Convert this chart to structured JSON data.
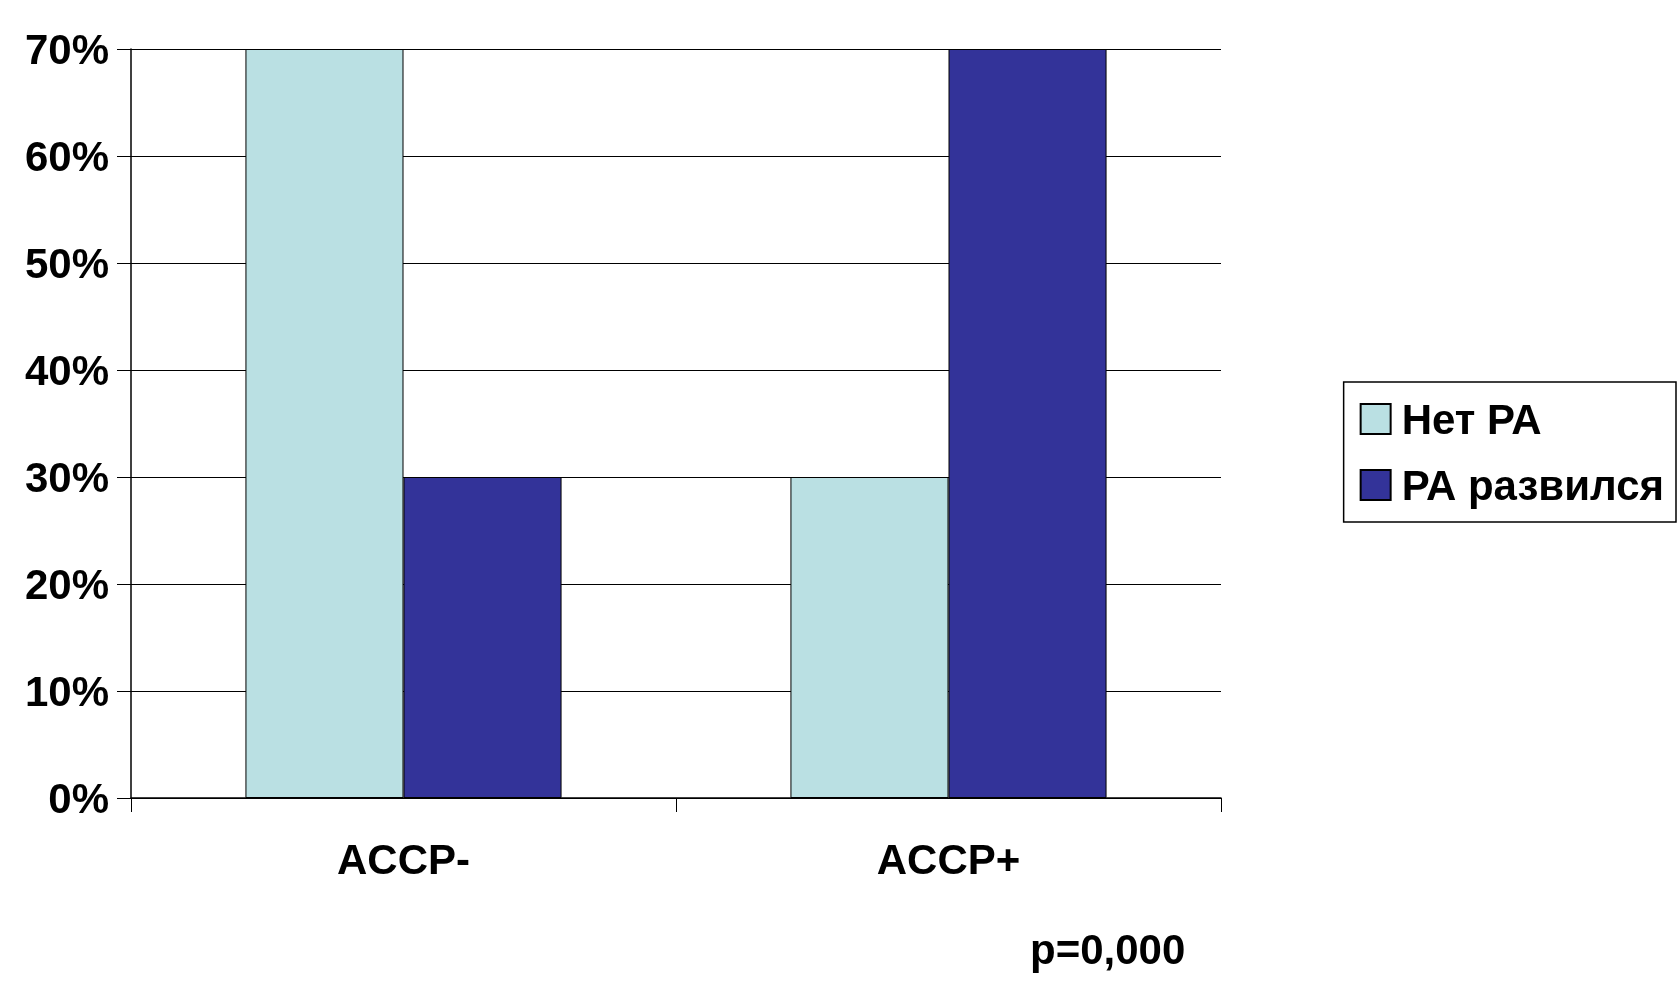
{
  "chart_data": {
    "type": "bar",
    "categories": [
      "ACCP-",
      "ACCP+"
    ],
    "series": [
      {
        "name": "Нет РА",
        "color": "#bae0e3",
        "values": [
          70,
          30
        ]
      },
      {
        "name": "РА развился",
        "color": "#333399",
        "values": [
          30,
          70
        ]
      }
    ],
    "ylim": [
      0,
      70
    ],
    "yticks": [
      {
        "value": 0,
        "label": "0%"
      },
      {
        "value": 10,
        "label": "10%"
      },
      {
        "value": 20,
        "label": "20%"
      },
      {
        "value": 30,
        "label": "30%"
      },
      {
        "value": 40,
        "label": "40%"
      },
      {
        "value": 50,
        "label": "50%"
      },
      {
        "value": 60,
        "label": "60%"
      },
      {
        "value": 70,
        "label": "70%"
      }
    ],
    "grid": "y",
    "legend": "right",
    "annotations": [
      "p=0,000"
    ]
  }
}
